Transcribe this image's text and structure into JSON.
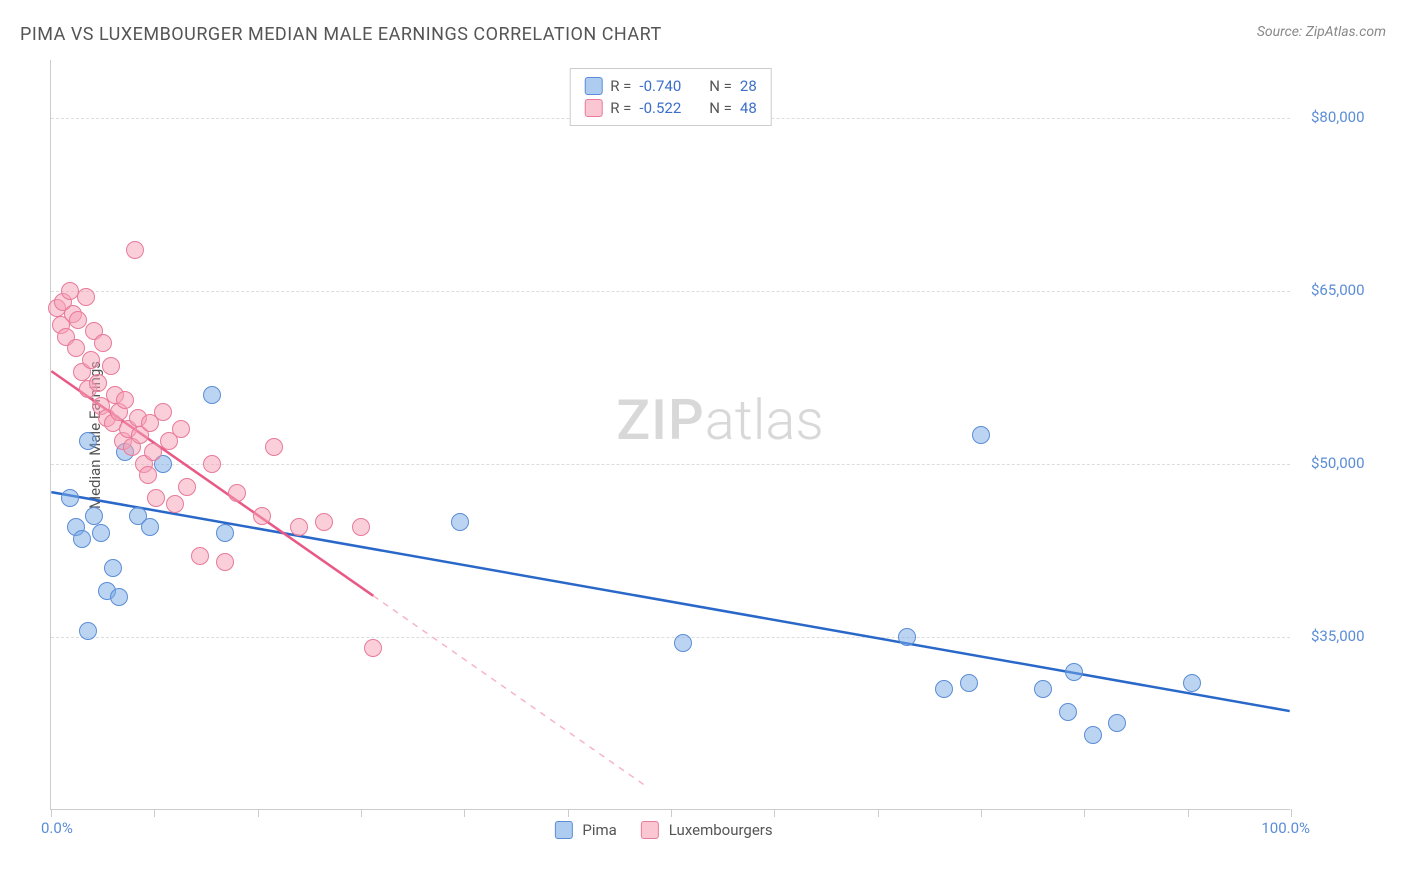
{
  "title": "PIMA VS LUXEMBOURGER MEDIAN MALE EARNINGS CORRELATION CHART",
  "source": "Source: ZipAtlas.com",
  "watermark_zip": "ZIP",
  "watermark_atlas": "atlas",
  "yaxis_label": "Median Male Earnings",
  "chart": {
    "type": "scatter",
    "xlim": [
      0,
      100
    ],
    "ylim": [
      20000,
      85000
    ],
    "x_tick_positions": [
      0,
      8.3,
      16.7,
      25,
      33.3,
      41.7,
      50,
      58.3,
      66.7,
      75,
      83.3,
      91.7,
      100
    ],
    "x_labels": {
      "min": "0.0%",
      "max": "100.0%"
    },
    "y_gridlines": [
      35000,
      50000,
      65000,
      80000
    ],
    "y_labels": [
      "$35,000",
      "$50,000",
      "$65,000",
      "$80,000"
    ],
    "grid_color": "#dddddd",
    "axis_color": "#cccccc",
    "background_color": "#ffffff",
    "label_color": "#5b8dd6",
    "series": [
      {
        "name": "Pima",
        "color_fill": "rgba(120,170,230,0.5)",
        "color_stroke": "#5b8dd6",
        "R": "-0.740",
        "N": "28",
        "trend": {
          "x1": 0,
          "y1": 47500,
          "x2": 100,
          "y2": 28500,
          "stroke": "#2968c8",
          "width": 2.5,
          "dash": "none"
        },
        "points": [
          [
            1.5,
            47000
          ],
          [
            2,
            44500
          ],
          [
            2.5,
            43500
          ],
          [
            3,
            52000
          ],
          [
            3.5,
            45500
          ],
          [
            3,
            35500
          ],
          [
            4,
            44000
          ],
          [
            4.5,
            39000
          ],
          [
            5,
            41000
          ],
          [
            5.5,
            38500
          ],
          [
            6,
            51000
          ],
          [
            7,
            45500
          ],
          [
            8,
            44500
          ],
          [
            9,
            50000
          ],
          [
            13,
            56000
          ],
          [
            14,
            44000
          ],
          [
            33,
            45000
          ],
          [
            51,
            34500
          ],
          [
            69,
            35000
          ],
          [
            72,
            30500
          ],
          [
            74,
            31000
          ],
          [
            75,
            52500
          ],
          [
            80,
            30500
          ],
          [
            82,
            28500
          ],
          [
            84,
            26500
          ],
          [
            86,
            27500
          ],
          [
            92,
            31000
          ],
          [
            82.5,
            32000
          ]
        ]
      },
      {
        "name": "Luxembourgers",
        "color_fill": "rgba(245,160,180,0.5)",
        "color_stroke": "#e87a9a",
        "R": "-0.522",
        "N": "48",
        "trend_solid": {
          "x1": 0,
          "y1": 58000,
          "x2": 26,
          "y2": 38500,
          "stroke": "#e85a85",
          "width": 2.5
        },
        "trend_dashed": {
          "x1": 26,
          "y1": 38500,
          "x2": 48,
          "y2": 22000,
          "stroke": "#f5b5c5",
          "width": 1.5
        },
        "points": [
          [
            0.5,
            63500
          ],
          [
            0.8,
            62000
          ],
          [
            1,
            64000
          ],
          [
            1.2,
            61000
          ],
          [
            1.5,
            65000
          ],
          [
            1.8,
            63000
          ],
          [
            2,
            60000
          ],
          [
            2.2,
            62500
          ],
          [
            2.5,
            58000
          ],
          [
            2.8,
            64500
          ],
          [
            3,
            56500
          ],
          [
            3.2,
            59000
          ],
          [
            3.5,
            61500
          ],
          [
            3.8,
            57000
          ],
          [
            4,
            55000
          ],
          [
            4.2,
            60500
          ],
          [
            4.5,
            54000
          ],
          [
            4.8,
            58500
          ],
          [
            5,
            53500
          ],
          [
            5.2,
            56000
          ],
          [
            5.5,
            54500
          ],
          [
            5.8,
            52000
          ],
          [
            6,
            55500
          ],
          [
            6.2,
            53000
          ],
          [
            6.5,
            51500
          ],
          [
            6.8,
            68500
          ],
          [
            7,
            54000
          ],
          [
            7.2,
            52500
          ],
          [
            7.5,
            50000
          ],
          [
            7.8,
            49000
          ],
          [
            8,
            53500
          ],
          [
            8.2,
            51000
          ],
          [
            8.5,
            47000
          ],
          [
            9,
            54500
          ],
          [
            9.5,
            52000
          ],
          [
            10,
            46500
          ],
          [
            10.5,
            53000
          ],
          [
            11,
            48000
          ],
          [
            12,
            42000
          ],
          [
            13,
            50000
          ],
          [
            14,
            41500
          ],
          [
            15,
            47500
          ],
          [
            17,
            45500
          ],
          [
            20,
            44500
          ],
          [
            22,
            45000
          ],
          [
            25,
            44500
          ],
          [
            26,
            34000
          ],
          [
            18,
            51500
          ]
        ]
      }
    ]
  },
  "legend_top": [
    {
      "swatch": "blue",
      "r_label": "R =",
      "r_val": "-0.740",
      "n_label": "N =",
      "n_val": "28"
    },
    {
      "swatch": "pink",
      "r_label": "R =",
      "r_val": "-0.522",
      "n_label": "N =",
      "n_val": "48"
    }
  ],
  "legend_bottom": [
    {
      "swatch": "blue",
      "label": "Pima"
    },
    {
      "swatch": "pink",
      "label": "Luxembourgers"
    }
  ]
}
